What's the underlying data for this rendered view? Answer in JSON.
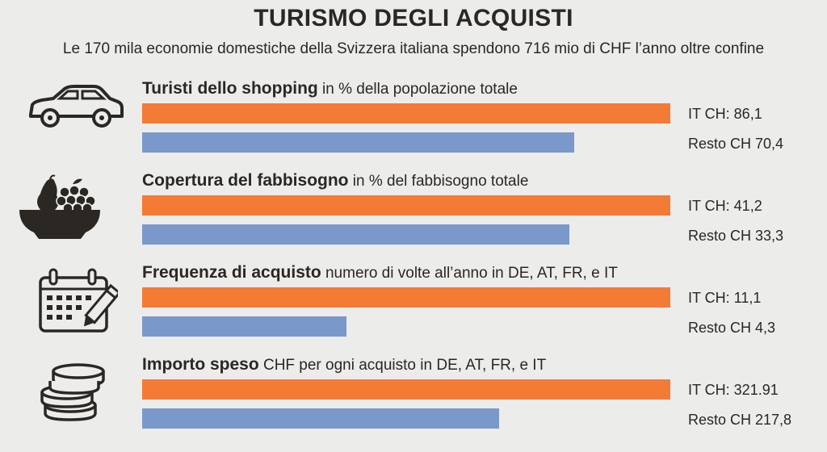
{
  "title": "TURISMO DEGLI ACQUISTI",
  "subtitle": "Le 170 mila economie domestiche della Svizzera italiana spendono 716 mio di CHF l’anno oltre confine",
  "colors": {
    "it": "#f47b35",
    "rest": "#7b98ca",
    "background": "#ececeb"
  },
  "chart_data": {
    "type": "bar",
    "orientation": "horizontal",
    "title": "TURISMO DEGLI ACQUISTI",
    "series_colors": {
      "IT CH": "#f47b35",
      "Resto CH": "#7b98ca"
    },
    "panels": [
      {
        "icon": "car-icon",
        "heading_bold": "Turisti dello shopping",
        "heading_rest": " in % della popolazione totale",
        "it_value": 86.1,
        "rest_value": 70.4,
        "it_label": "IT CH: 86,1",
        "rest_label": "Resto CH 70,4"
      },
      {
        "icon": "fruit-bowl-icon",
        "heading_bold": "Copertura del fabbisogno",
        "heading_rest": " in % del fabbisogno totale",
        "it_value": 41.2,
        "rest_value": 33.3,
        "it_label": "IT CH: 41,2",
        "rest_label": "Resto CH 33,3"
      },
      {
        "icon": "calendar-icon",
        "heading_bold": "Frequenza di acquisto",
        "heading_rest": " numero di volte all’anno in DE, AT, FR, e IT",
        "it_value": 11.1,
        "rest_value": 4.3,
        "it_label": "IT CH: 11,1",
        "rest_label": "Resto CH 4,3"
      },
      {
        "icon": "coins-icon",
        "heading_bold": "Importo speso",
        "heading_rest": " CHF per ogni acquisto in DE, AT, FR, e IT",
        "it_value": 321.91,
        "rest_value": 217.8,
        "it_label": "IT CH: 321.91",
        "rest_label": "Resto CH 217,8"
      }
    ]
  }
}
